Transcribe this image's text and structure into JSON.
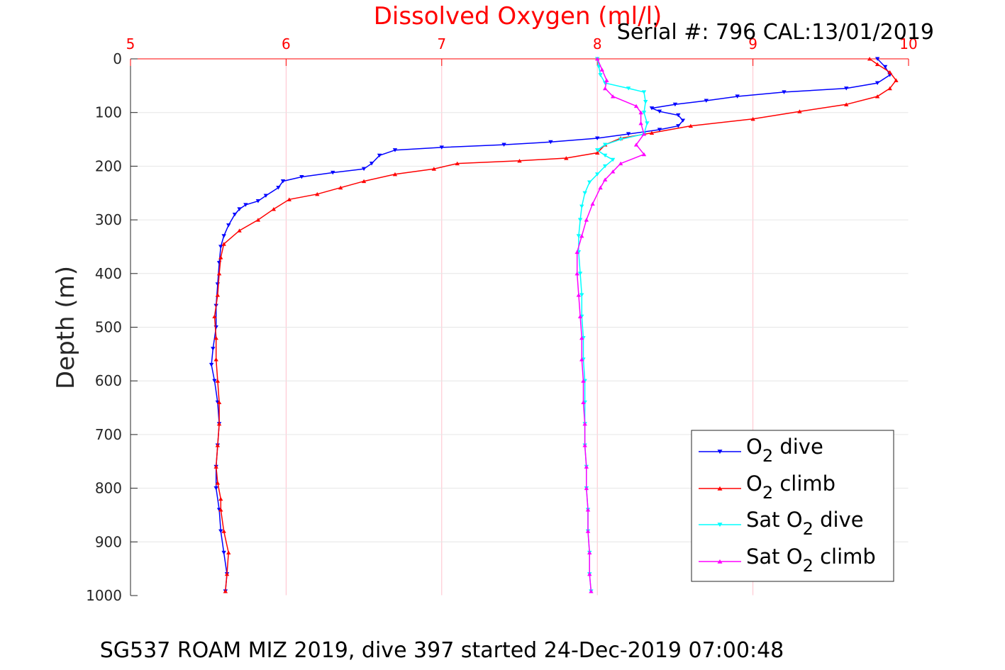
{
  "chart_data": {
    "type": "scatter",
    "title": "Dissolved Oxygen (ml/l)",
    "serial_text": "Serial #: 796  CAL:13/01/2019",
    "footer": "SG537 ROAM MIZ 2019, dive 397 started 24-Dec-2019 07:00:48",
    "ylabel": "Depth (m)",
    "xlabel": "",
    "xlim": [
      5,
      10
    ],
    "ylim": [
      0,
      1000
    ],
    "y_reversed": true,
    "x_axis_position": "top",
    "grid": true,
    "legend_position": "bottom-right",
    "x_ticks": [
      "5",
      "6",
      "7",
      "8",
      "9",
      "10"
    ],
    "y_ticks": [
      "0",
      "100",
      "200",
      "300",
      "400",
      "500",
      "600",
      "700",
      "800",
      "900",
      "1000"
    ],
    "colors": {
      "title": "#ff0000",
      "x_tick_labels": "#ff0000",
      "x_grid": "#ffc0cb",
      "y_grid": "#e6e6e6",
      "o2_dive": "#0000ff",
      "o2_climb": "#ff0000",
      "sat_dive": "#00ffff",
      "sat_climb": "#ff00ff"
    },
    "series": [
      {
        "key": "o2_dive",
        "marker": "triangle-down",
        "color": "#0000ff",
        "points": [
          [
            9.8,
            0
          ],
          [
            9.85,
            15
          ],
          [
            9.88,
            30
          ],
          [
            9.8,
            45
          ],
          [
            9.6,
            55
          ],
          [
            9.2,
            62
          ],
          [
            8.9,
            70
          ],
          [
            8.7,
            78
          ],
          [
            8.5,
            85
          ],
          [
            8.35,
            92
          ],
          [
            8.4,
            98
          ],
          [
            8.52,
            105
          ],
          [
            8.55,
            115
          ],
          [
            8.52,
            125
          ],
          [
            8.4,
            132
          ],
          [
            8.2,
            140
          ],
          [
            8.0,
            148
          ],
          [
            7.7,
            155
          ],
          [
            7.4,
            160
          ],
          [
            7.0,
            165
          ],
          [
            6.7,
            170
          ],
          [
            6.6,
            180
          ],
          [
            6.55,
            195
          ],
          [
            6.5,
            205
          ],
          [
            6.3,
            212
          ],
          [
            6.1,
            220
          ],
          [
            5.98,
            228
          ],
          [
            5.95,
            240
          ],
          [
            5.87,
            255
          ],
          [
            5.82,
            265
          ],
          [
            5.74,
            272
          ],
          [
            5.7,
            280
          ],
          [
            5.67,
            290
          ],
          [
            5.63,
            310
          ],
          [
            5.6,
            330
          ],
          [
            5.58,
            350
          ],
          [
            5.57,
            380
          ],
          [
            5.56,
            420
          ],
          [
            5.55,
            460
          ],
          [
            5.55,
            500
          ],
          [
            5.53,
            540
          ],
          [
            5.52,
            570
          ],
          [
            5.54,
            600
          ],
          [
            5.56,
            640
          ],
          [
            5.57,
            680
          ],
          [
            5.56,
            720
          ],
          [
            5.55,
            760
          ],
          [
            5.55,
            800
          ],
          [
            5.57,
            840
          ],
          [
            5.58,
            880
          ],
          [
            5.6,
            920
          ],
          [
            5.62,
            960
          ],
          [
            5.61,
            992
          ]
        ],
        "name": "O2 dive"
      },
      {
        "key": "o2_climb",
        "marker": "triangle-up",
        "color": "#ff0000",
        "points": [
          [
            5.61,
            992
          ],
          [
            5.62,
            960
          ],
          [
            5.63,
            920
          ],
          [
            5.6,
            880
          ],
          [
            5.58,
            840
          ],
          [
            5.58,
            820
          ],
          [
            5.56,
            790
          ],
          [
            5.55,
            760
          ],
          [
            5.56,
            720
          ],
          [
            5.57,
            680
          ],
          [
            5.57,
            640
          ],
          [
            5.56,
            600
          ],
          [
            5.55,
            560
          ],
          [
            5.55,
            520
          ],
          [
            5.54,
            480
          ],
          [
            5.56,
            440
          ],
          [
            5.57,
            400
          ],
          [
            5.58,
            370
          ],
          [
            5.6,
            345
          ],
          [
            5.7,
            320
          ],
          [
            5.82,
            300
          ],
          [
            5.92,
            280
          ],
          [
            6.02,
            262
          ],
          [
            6.2,
            252
          ],
          [
            6.35,
            240
          ],
          [
            6.5,
            228
          ],
          [
            6.7,
            215
          ],
          [
            6.95,
            205
          ],
          [
            7.1,
            195
          ],
          [
            7.5,
            190
          ],
          [
            7.8,
            185
          ],
          [
            8.0,
            175
          ],
          [
            8.05,
            160
          ],
          [
            8.15,
            148
          ],
          [
            8.35,
            138
          ],
          [
            8.6,
            125
          ],
          [
            9.0,
            112
          ],
          [
            9.3,
            98
          ],
          [
            9.6,
            85
          ],
          [
            9.8,
            70
          ],
          [
            9.88,
            55
          ],
          [
            9.92,
            40
          ],
          [
            9.88,
            25
          ],
          [
            9.8,
            10
          ],
          [
            9.75,
            0
          ]
        ],
        "name": "O2 climb"
      },
      {
        "key": "sat_dive",
        "marker": "triangle-down",
        "color": "#00ffff",
        "points": [
          [
            8.0,
            0
          ],
          [
            8.01,
            15
          ],
          [
            8.02,
            30
          ],
          [
            8.05,
            45
          ],
          [
            8.2,
            55
          ],
          [
            8.3,
            62
          ],
          [
            8.31,
            80
          ],
          [
            8.3,
            100
          ],
          [
            8.32,
            120
          ],
          [
            8.3,
            140
          ],
          [
            8.15,
            150
          ],
          [
            8.05,
            160
          ],
          [
            8.0,
            170
          ],
          [
            8.05,
            180
          ],
          [
            8.1,
            188
          ],
          [
            8.05,
            200
          ],
          [
            8.0,
            215
          ],
          [
            7.95,
            230
          ],
          [
            7.92,
            250
          ],
          [
            7.9,
            275
          ],
          [
            7.89,
            300
          ],
          [
            7.88,
            330
          ],
          [
            7.88,
            360
          ],
          [
            7.89,
            400
          ],
          [
            7.9,
            440
          ],
          [
            7.9,
            480
          ],
          [
            7.91,
            520
          ],
          [
            7.91,
            560
          ],
          [
            7.92,
            600
          ],
          [
            7.92,
            640
          ],
          [
            7.92,
            680
          ],
          [
            7.92,
            720
          ],
          [
            7.93,
            760
          ],
          [
            7.93,
            800
          ],
          [
            7.94,
            840
          ],
          [
            7.94,
            880
          ],
          [
            7.95,
            920
          ],
          [
            7.95,
            960
          ],
          [
            7.96,
            992
          ]
        ],
        "name": "Sat O2 dive"
      },
      {
        "key": "sat_climb",
        "marker": "triangle-up",
        "color": "#ff00ff",
        "points": [
          [
            7.96,
            992
          ],
          [
            7.95,
            960
          ],
          [
            7.95,
            920
          ],
          [
            7.94,
            880
          ],
          [
            7.94,
            840
          ],
          [
            7.93,
            800
          ],
          [
            7.93,
            760
          ],
          [
            7.92,
            720
          ],
          [
            7.92,
            680
          ],
          [
            7.91,
            640
          ],
          [
            7.91,
            600
          ],
          [
            7.9,
            560
          ],
          [
            7.9,
            520
          ],
          [
            7.89,
            480
          ],
          [
            7.88,
            440
          ],
          [
            7.87,
            400
          ],
          [
            7.87,
            360
          ],
          [
            7.9,
            330
          ],
          [
            7.93,
            300
          ],
          [
            7.97,
            270
          ],
          [
            8.02,
            240
          ],
          [
            8.05,
            225
          ],
          [
            8.1,
            210
          ],
          [
            8.15,
            195
          ],
          [
            8.3,
            178
          ],
          [
            8.25,
            160
          ],
          [
            8.3,
            140
          ],
          [
            8.28,
            120
          ],
          [
            8.28,
            100
          ],
          [
            8.25,
            88
          ],
          [
            8.1,
            70
          ],
          [
            8.05,
            55
          ],
          [
            8.06,
            40
          ],
          [
            8.03,
            20
          ],
          [
            8.0,
            0
          ]
        ],
        "name": "Sat O2 climb"
      }
    ]
  },
  "legend": [
    {
      "key": "o2_dive",
      "pre": "O",
      "sub": "2",
      "post": " dive",
      "color": "#0000ff",
      "marker": "triangle-down"
    },
    {
      "key": "o2_climb",
      "pre": "O",
      "sub": "2",
      "post": " climb",
      "color": "#ff0000",
      "marker": "triangle-up"
    },
    {
      "key": "sat_dive",
      "pre": "Sat O",
      "sub": "2",
      "post": " dive",
      "color": "#00ffff",
      "marker": "triangle-down"
    },
    {
      "key": "sat_climb",
      "pre": "Sat O",
      "sub": "2",
      "post": " climb",
      "color": "#ff00ff",
      "marker": "triangle-up"
    }
  ]
}
